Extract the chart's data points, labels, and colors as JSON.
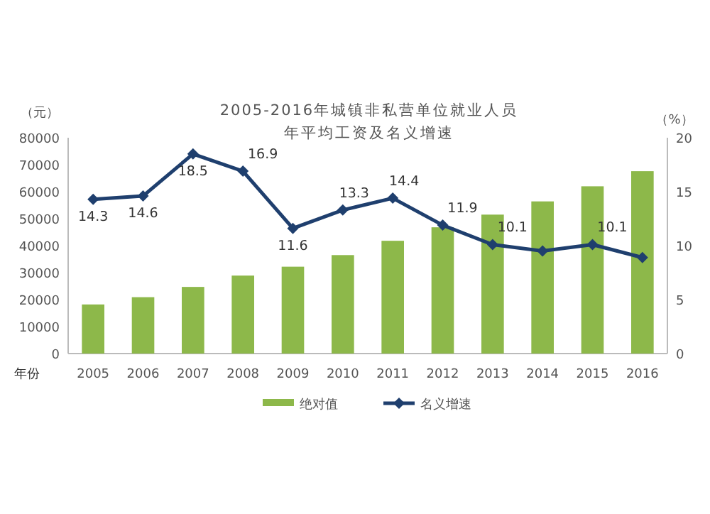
{
  "chart_data": {
    "type": "bar",
    "title": "2005-2016年城镇非私营单位就业人员",
    "subtitle": "年平均工资及名义增速",
    "xlabel": "年份",
    "ylabel": "（元）",
    "y2label": "（%）",
    "categories": [
      "2005",
      "2006",
      "2007",
      "2008",
      "2009",
      "2010",
      "2011",
      "2012",
      "2013",
      "2014",
      "2015",
      "2016"
    ],
    "series": [
      {
        "name": "绝对值",
        "color": "#8db84a",
        "values": [
          18200,
          20900,
          24700,
          28900,
          32200,
          36500,
          41800,
          46800,
          51500,
          56400,
          62000,
          67600
        ]
      },
      {
        "name": "名义增速",
        "type": "line",
        "axis": "y2",
        "color": "#1f3f6e",
        "marker": "diamond",
        "values": [
          14.3,
          14.6,
          18.5,
          16.9,
          11.6,
          13.3,
          14.4,
          11.9,
          10.1,
          9.5,
          10.1,
          8.9
        ],
        "value_labels": [
          "14.3",
          "14.6",
          "18.5",
          "16.9",
          "11.6",
          "13.3",
          "14.4",
          "11.9",
          "10.1",
          null,
          "10.1",
          null
        ]
      }
    ],
    "ylim": [
      0,
      80000
    ],
    "yticks": [
      0,
      10000,
      20000,
      30000,
      40000,
      50000,
      60000,
      70000,
      80000
    ],
    "y2lim": [
      0,
      20
    ],
    "y2ticks": [
      0,
      5,
      10,
      15,
      20
    ],
    "legend": "bottom",
    "grid": false
  }
}
